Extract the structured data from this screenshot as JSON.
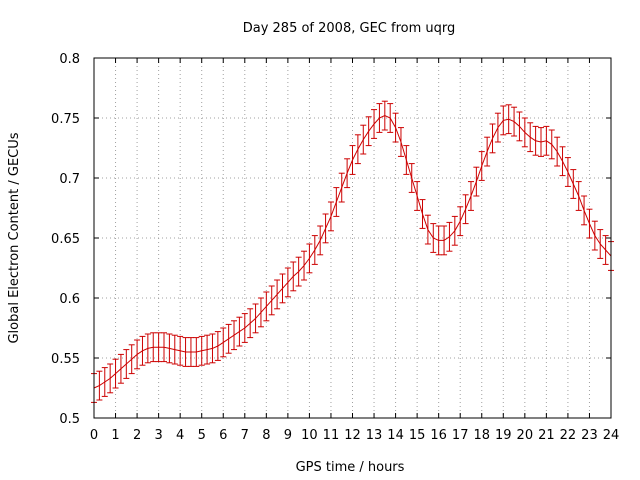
{
  "chart_data": {
    "type": "line",
    "title": "Day 285 of 2008, GEC from uqrg",
    "xlabel": "GPS time / hours",
    "ylabel": "Global Electron Content / GECUs",
    "xlim": [
      0,
      24
    ],
    "ylim": [
      0.5,
      0.8
    ],
    "xticks": [
      0,
      1,
      2,
      3,
      4,
      5,
      6,
      7,
      8,
      9,
      10,
      11,
      12,
      13,
      14,
      15,
      16,
      17,
      18,
      19,
      20,
      21,
      22,
      23,
      24
    ],
    "yticks": [
      0.5,
      0.55,
      0.6,
      0.65,
      0.7,
      0.75,
      0.8
    ],
    "ytick_labels": [
      "0.5",
      "0.55",
      "0.6",
      "0.65",
      "0.7",
      "0.75",
      "0.8"
    ],
    "grid": true,
    "error_bar": 0.012,
    "series_color": "#cc0000",
    "series": [
      {
        "name": "GEC",
        "x": [
          0,
          0.25,
          0.5,
          0.75,
          1,
          1.25,
          1.5,
          1.75,
          2,
          2.25,
          2.5,
          2.75,
          3,
          3.25,
          3.5,
          3.75,
          4,
          4.25,
          4.5,
          4.75,
          5,
          5.25,
          5.5,
          5.75,
          6,
          6.25,
          6.5,
          6.75,
          7,
          7.25,
          7.5,
          7.75,
          8,
          8.25,
          8.5,
          8.75,
          9,
          9.25,
          9.5,
          9.75,
          10,
          10.25,
          10.5,
          10.75,
          11,
          11.25,
          11.5,
          11.75,
          12,
          12.25,
          12.5,
          12.75,
          13,
          13.25,
          13.5,
          13.75,
          14,
          14.25,
          14.5,
          14.75,
          15,
          15.25,
          15.5,
          15.75,
          16,
          16.25,
          16.5,
          16.75,
          17,
          17.25,
          17.5,
          17.75,
          18,
          18.25,
          18.5,
          18.75,
          19,
          19.25,
          19.5,
          19.75,
          20,
          20.25,
          20.5,
          20.75,
          21,
          21.25,
          21.5,
          21.75,
          22,
          22.25,
          22.5,
          22.75,
          23,
          23.25,
          23.5,
          23.75,
          24
        ],
        "values": [
          0.525,
          0.527,
          0.53,
          0.533,
          0.537,
          0.541,
          0.545,
          0.549,
          0.553,
          0.556,
          0.558,
          0.559,
          0.559,
          0.559,
          0.558,
          0.557,
          0.556,
          0.555,
          0.555,
          0.555,
          0.556,
          0.557,
          0.558,
          0.56,
          0.563,
          0.566,
          0.569,
          0.572,
          0.575,
          0.579,
          0.583,
          0.588,
          0.593,
          0.598,
          0.603,
          0.608,
          0.613,
          0.618,
          0.622,
          0.627,
          0.633,
          0.64,
          0.648,
          0.658,
          0.668,
          0.68,
          0.692,
          0.704,
          0.715,
          0.724,
          0.732,
          0.739,
          0.745,
          0.75,
          0.752,
          0.75,
          0.742,
          0.73,
          0.715,
          0.7,
          0.685,
          0.67,
          0.657,
          0.65,
          0.648,
          0.648,
          0.651,
          0.656,
          0.664,
          0.674,
          0.685,
          0.697,
          0.71,
          0.722,
          0.733,
          0.742,
          0.748,
          0.749,
          0.747,
          0.743,
          0.738,
          0.734,
          0.731,
          0.73,
          0.731,
          0.728,
          0.722,
          0.714,
          0.705,
          0.695,
          0.685,
          0.673,
          0.662,
          0.652,
          0.645,
          0.64,
          0.635
        ]
      }
    ]
  }
}
